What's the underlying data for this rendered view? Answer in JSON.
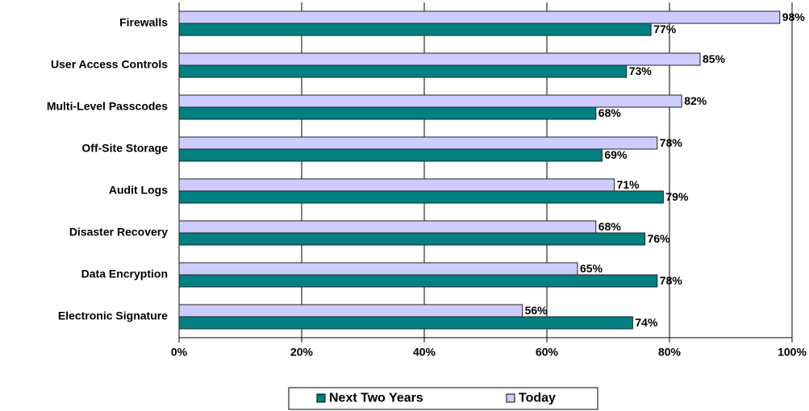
{
  "chart_data": {
    "type": "bar",
    "orientation": "horizontal",
    "categories": [
      "Firewalls",
      "User Access Controls",
      "Multi-Level Passcodes",
      "Off-Site Storage",
      "Audit Logs",
      "Disaster Recovery",
      "Data Encryption",
      "Electronic Signature"
    ],
    "series": [
      {
        "name": "Next Two Years",
        "color": "#008080",
        "values": [
          77,
          73,
          68,
          69,
          79,
          76,
          78,
          74
        ],
        "value_labels": [
          "77%",
          "73%",
          "68%",
          "69%",
          "79%",
          "76%",
          "78%",
          "74%"
        ]
      },
      {
        "name": "Today",
        "color": "#ccccff",
        "values": [
          98,
          85,
          82,
          78,
          71,
          68,
          65,
          56
        ],
        "value_labels": [
          "98%",
          "85%",
          "82%",
          "78%",
          "71%",
          "68%",
          "65%",
          "56%"
        ]
      }
    ],
    "xlim": [
      0,
      100
    ],
    "xticks": [
      {
        "value": 0,
        "label": "0%"
      },
      {
        "value": 20,
        "label": "20%"
      },
      {
        "value": 40,
        "label": "40%"
      },
      {
        "value": 60,
        "label": "60%"
      },
      {
        "value": 80,
        "label": "80%"
      },
      {
        "value": 100,
        "label": "100%"
      }
    ],
    "grid": true,
    "legend": "bottom"
  }
}
